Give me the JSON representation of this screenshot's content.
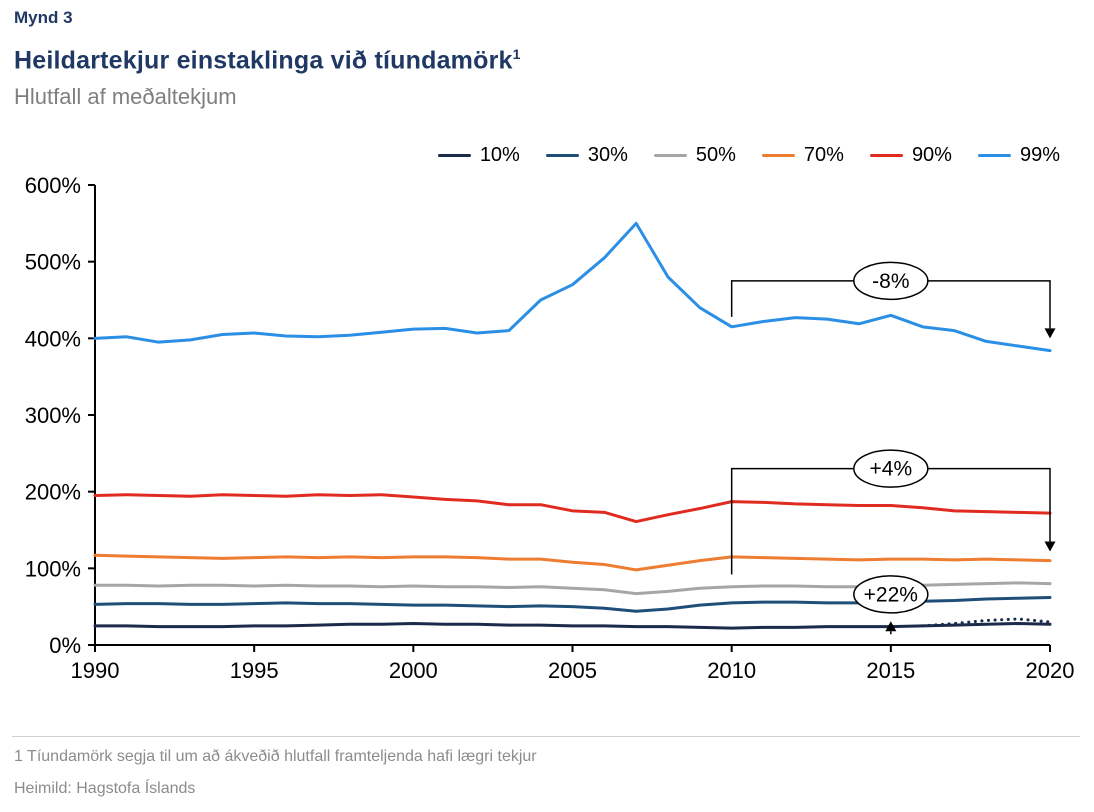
{
  "figure_label": "Mynd 3",
  "title": "Heildartekjur einstaklinga við tíundamörk",
  "title_superscript": "1",
  "subtitle": "Hlutfall af meðaltekjum",
  "footnote": "1 Tíundamörk segja til um að ákveðið hlutfall framteljenda hafi lægri tekjur",
  "source": "Heimild: Hagstofa Íslands",
  "colors": {
    "heading": "#1f3864",
    "subtitle": "#7f7f7f",
    "axis": "#000000",
    "annotation": "#000000",
    "footer_text": "#8c8c8c",
    "divider": "#cfcfcf",
    "background": "#ffffff"
  },
  "chart_data": {
    "type": "line",
    "title": "Heildartekjur einstaklinga við tíundamörk¹",
    "subtitle": "Hlutfall af meðaltekjum",
    "xlabel": "",
    "ylabel": "",
    "xlim": [
      1990,
      2020
    ],
    "ylim": [
      0,
      600
    ],
    "grid": false,
    "legend_position": "top-right",
    "x": [
      1990,
      1991,
      1992,
      1993,
      1994,
      1995,
      1996,
      1997,
      1998,
      1999,
      2000,
      2001,
      2002,
      2003,
      2004,
      2005,
      2006,
      2007,
      2008,
      2009,
      2010,
      2011,
      2012,
      2013,
      2014,
      2015,
      2016,
      2017,
      2018,
      2019,
      2020
    ],
    "x_ticks": [
      {
        "value": 1990,
        "label": "1990"
      },
      {
        "value": 1995,
        "label": "1995"
      },
      {
        "value": 2000,
        "label": "2000"
      },
      {
        "value": 2005,
        "label": "2005"
      },
      {
        "value": 2010,
        "label": "2010"
      },
      {
        "value": 2015,
        "label": "2015"
      },
      {
        "value": 2020,
        "label": "2020"
      }
    ],
    "y_ticks": [
      {
        "value": 0,
        "label": "0%"
      },
      {
        "value": 100,
        "label": "100%"
      },
      {
        "value": 200,
        "label": "200%"
      },
      {
        "value": 300,
        "label": "300%"
      },
      {
        "value": 400,
        "label": "400%"
      },
      {
        "value": 500,
        "label": "500%"
      },
      {
        "value": 600,
        "label": "600%"
      }
    ],
    "series": [
      {
        "name": "10%",
        "color": "#1c2b4a",
        "values": [
          25,
          25,
          24,
          24,
          24,
          25,
          25,
          26,
          27,
          27,
          28,
          27,
          27,
          26,
          26,
          25,
          25,
          24,
          24,
          23,
          22,
          23,
          23,
          24,
          24,
          24,
          25,
          26,
          27,
          28,
          27
        ]
      },
      {
        "name": "30%",
        "color": "#1f4e79",
        "values": [
          53,
          54,
          54,
          53,
          53,
          54,
          55,
          54,
          54,
          53,
          52,
          52,
          51,
          50,
          51,
          50,
          48,
          44,
          47,
          52,
          55,
          56,
          56,
          55,
          55,
          56,
          57,
          58,
          60,
          61,
          62
        ]
      },
      {
        "name": "50%",
        "color": "#a6a6a6",
        "values": [
          78,
          78,
          77,
          78,
          78,
          77,
          78,
          77,
          77,
          76,
          77,
          76,
          76,
          75,
          76,
          74,
          72,
          67,
          70,
          74,
          76,
          77,
          77,
          76,
          76,
          77,
          78,
          79,
          80,
          81,
          80
        ]
      },
      {
        "name": "70%",
        "color": "#ed7d31",
        "values": [
          117,
          116,
          115,
          114,
          113,
          114,
          115,
          114,
          115,
          114,
          115,
          115,
          114,
          112,
          112,
          108,
          105,
          98,
          104,
          110,
          115,
          114,
          113,
          112,
          111,
          112,
          112,
          111,
          112,
          111,
          110
        ]
      },
      {
        "name": "90%",
        "color": "#e02b20",
        "values": [
          195,
          196,
          195,
          194,
          196,
          195,
          194,
          196,
          195,
          196,
          193,
          190,
          188,
          183,
          183,
          175,
          173,
          161,
          170,
          178,
          187,
          186,
          184,
          183,
          182,
          182,
          179,
          175,
          174,
          173,
          172
        ]
      },
      {
        "name": "99%",
        "color": "#2a8fe5",
        "values": [
          400,
          402,
          395,
          398,
          405,
          407,
          403,
          402,
          404,
          408,
          412,
          413,
          407,
          410,
          450,
          470,
          505,
          550,
          480,
          440,
          415,
          422,
          427,
          425,
          419,
          430,
          415,
          410,
          396,
          390,
          384
        ]
      }
    ],
    "dotted_overlay": {
      "name": "10% (dotted)",
      "color": "#1c2b4a",
      "x": [
        2016,
        2017,
        2018,
        2019,
        2020
      ],
      "values": [
        25,
        28,
        32,
        34,
        30
      ]
    },
    "annotations": [
      {
        "type": "bracket",
        "label": "-8%",
        "x1": 2010,
        "x2": 2020,
        "bracket_y": 475,
        "left_end": 428,
        "arrow_end": 400,
        "ellipse_x": 2015,
        "ellipse_y": 475
      },
      {
        "type": "bracket",
        "label": "+4%",
        "x1": 2010,
        "x2": 2020,
        "bracket_y": 230,
        "left_end": 92,
        "arrow_end": 122,
        "ellipse_x": 2015,
        "ellipse_y": 230
      },
      {
        "type": "up-arrow",
        "label": "+22%",
        "arrow_x": 2015,
        "arrow_from": 14,
        "arrow_to": 31,
        "ellipse_x": 2015,
        "ellipse_y": 66
      }
    ]
  }
}
